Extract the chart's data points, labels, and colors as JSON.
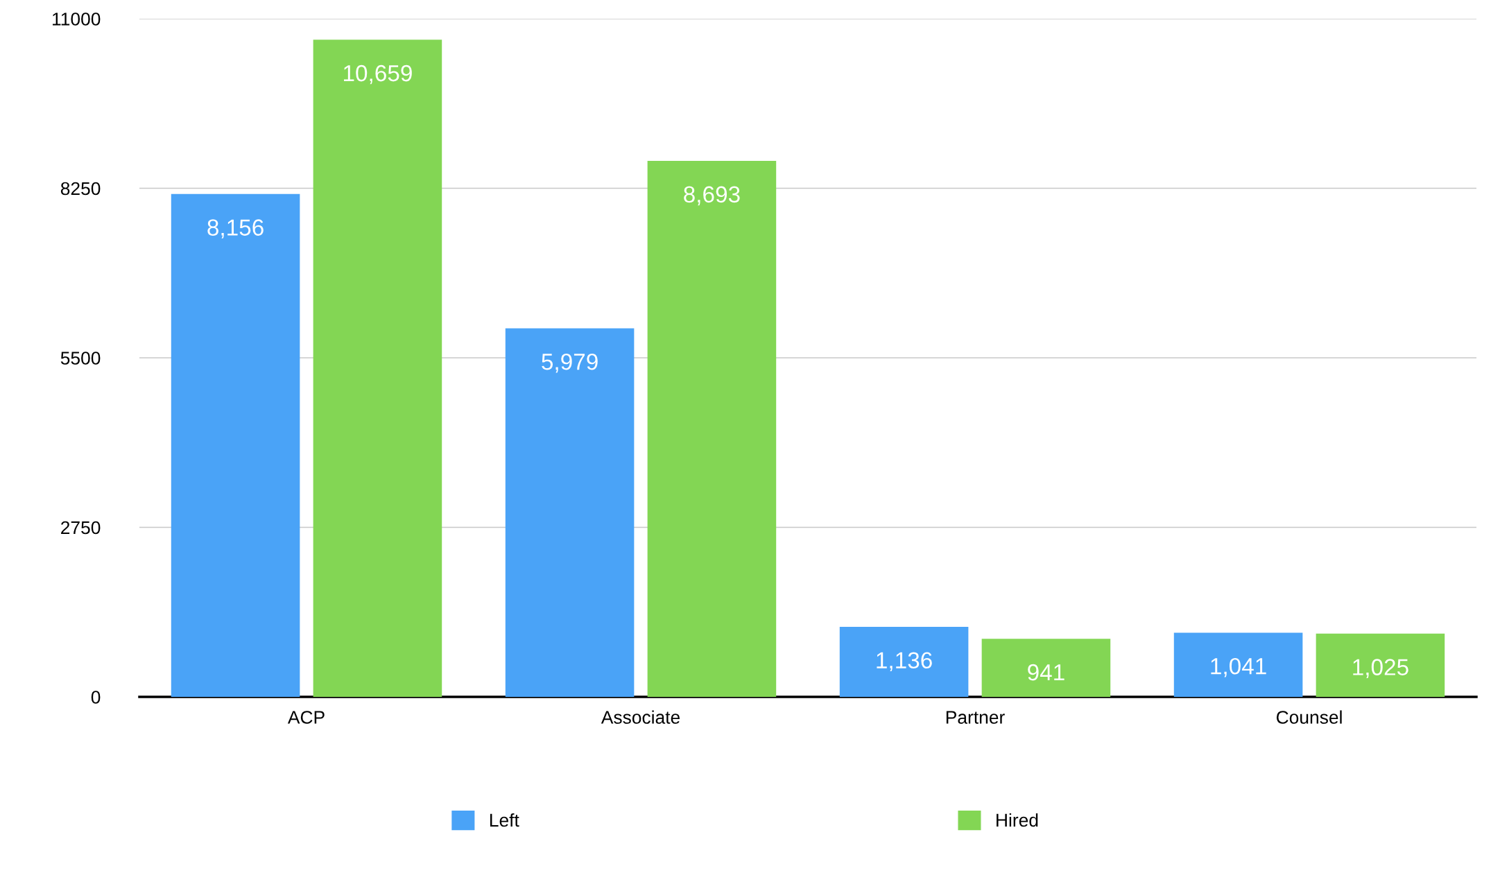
{
  "chart_data": {
    "type": "bar",
    "categories": [
      "ACP",
      "Associate",
      "Partner",
      "Counsel"
    ],
    "series": [
      {
        "name": "Left",
        "color": "#4aa3f7",
        "values": [
          8156,
          5979,
          1136,
          1041
        ],
        "value_labels": [
          "8,156",
          "5,979",
          "1,136",
          "1,041"
        ]
      },
      {
        "name": "Hired",
        "color": "#83d654",
        "values": [
          10659,
          8693,
          941,
          1025
        ],
        "value_labels": [
          "10,659",
          "8,693",
          "941",
          "1,025"
        ]
      }
    ],
    "ylim": [
      0,
      11000
    ],
    "yticks": [
      0,
      2750,
      5500,
      8250,
      11000
    ],
    "grid": "y",
    "legend": "bottom"
  }
}
